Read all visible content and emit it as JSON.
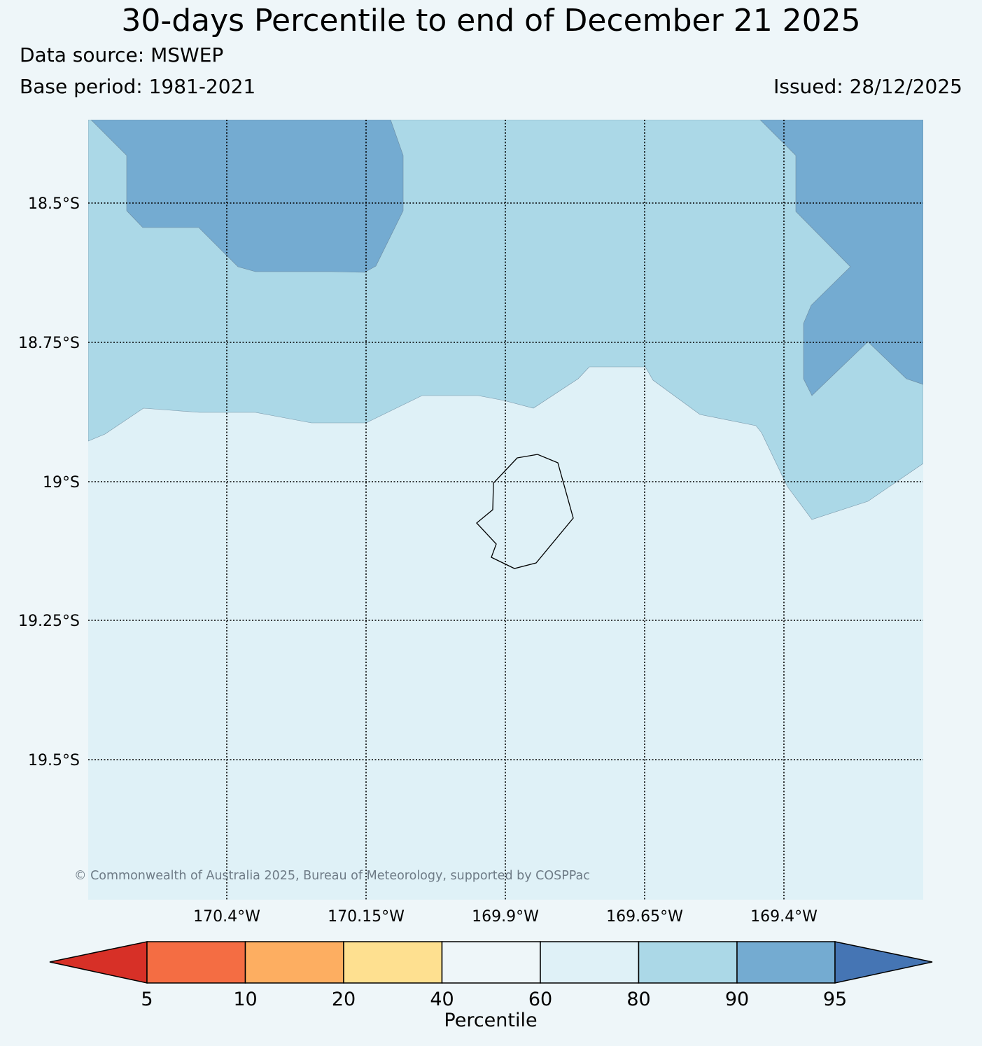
{
  "header": {
    "title": "30-days Percentile to end of December 21 2025",
    "data_source": "Data source: MSWEP",
    "base_period": "Base period: 1981-2021",
    "issued": "Issued: 28/12/2025"
  },
  "map": {
    "lat_labels": [
      "18.5°S",
      "18.75°S",
      "19°S",
      "19.25°S",
      "19.5°S"
    ],
    "lon_labels": [
      "170.4°W",
      "170.15°W",
      "169.9°W",
      "169.65°W",
      "169.4°W"
    ],
    "copyright": "© Commonwealth of Australia 2025, Bureau of Meteorology, supported by COSPPac",
    "region_colors": {
      "p60_80": "#dff1f7",
      "p80_90": "#abd8e7",
      "p90_95": "#74abd1"
    },
    "island_outline_color": "#000000"
  },
  "colorbar": {
    "title": "Percentile",
    "ticks": [
      "5",
      "10",
      "20",
      "40",
      "60",
      "80",
      "90",
      "95"
    ],
    "colors": [
      "#d73027",
      "#f46d43",
      "#fdae61",
      "#fee090",
      "#eef6f9",
      "#dff1f7",
      "#abd8e7",
      "#74abd1",
      "#4575b4"
    ]
  }
}
